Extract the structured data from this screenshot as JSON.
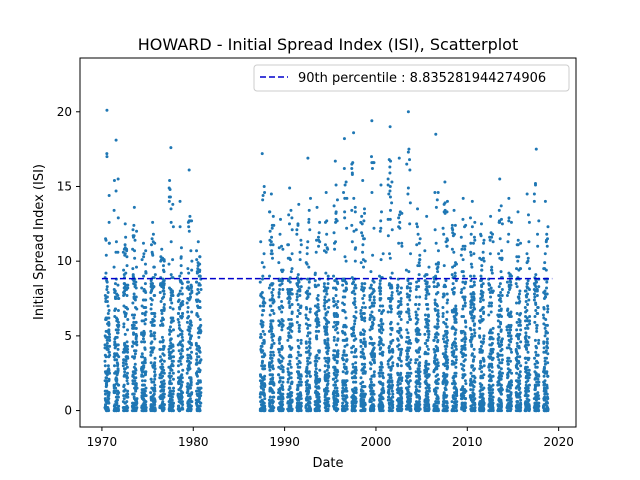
{
  "chart_data": {
    "type": "scatter",
    "title": "HOWARD - Initial Spread Index (ISI), Scatterplot",
    "xlabel": "Date",
    "ylabel": "Initial Spread Index (ISI)",
    "xlim": [
      1967.6,
      2021.9
    ],
    "ylim": [
      -1.1,
      23.6
    ],
    "x_ticks": [
      1970,
      1980,
      1990,
      2000,
      2010,
      2020
    ],
    "y_ticks": [
      0,
      5,
      10,
      15,
      20
    ],
    "x_tick_labels": [
      "1970",
      "1980",
      "1990",
      "2000",
      "2010",
      "2020"
    ],
    "y_tick_labels": [
      "0",
      "5",
      "10",
      "15",
      "20"
    ],
    "grid": false,
    "legend_position": "top-right",
    "series": [
      {
        "name": "ISI",
        "color": "#1f77b4",
        "seasons": [
          1970,
          1971,
          1972,
          1973,
          1974,
          1975,
          1976,
          1977,
          1978,
          1979,
          1980,
          1987,
          1988,
          1989,
          1990,
          1991,
          1992,
          1993,
          1994,
          1995,
          1996,
          1997,
          1998,
          1999,
          2000,
          2001,
          2002,
          2003,
          2004,
          2005,
          2006,
          2007,
          2008,
          2009,
          2010,
          2011,
          2012,
          2013,
          2014,
          2015,
          2016,
          2017,
          2018
        ],
        "season_peaks": [
          20.1,
          18.1,
          12.5,
          13.6,
          11.2,
          12.6,
          10.8,
          17.6,
          14.0,
          16.1,
          11.3,
          17.2,
          14.5,
          12.8,
          14.9,
          13.8,
          16.9,
          13.6,
          14.6,
          16.7,
          18.2,
          18.6,
          15.4,
          19.4,
          15.1,
          19.0,
          16.9,
          20.0,
          13.5,
          13.0,
          18.5,
          15.3,
          13.4,
          14.2,
          14.0,
          12.5,
          13.0,
          15.5,
          14.2,
          13.3,
          14.5,
          17.5,
          14.0
        ],
        "summer_start": 0.33,
        "summer_end": 0.85,
        "typical_max": 9
      },
      {
        "name": "90th percentile : 8.835281944274906",
        "color": "#0000cc",
        "y": 8.835281944274906,
        "x_range": [
          1970.0,
          2019.3
        ],
        "style": "dashed"
      }
    ]
  }
}
